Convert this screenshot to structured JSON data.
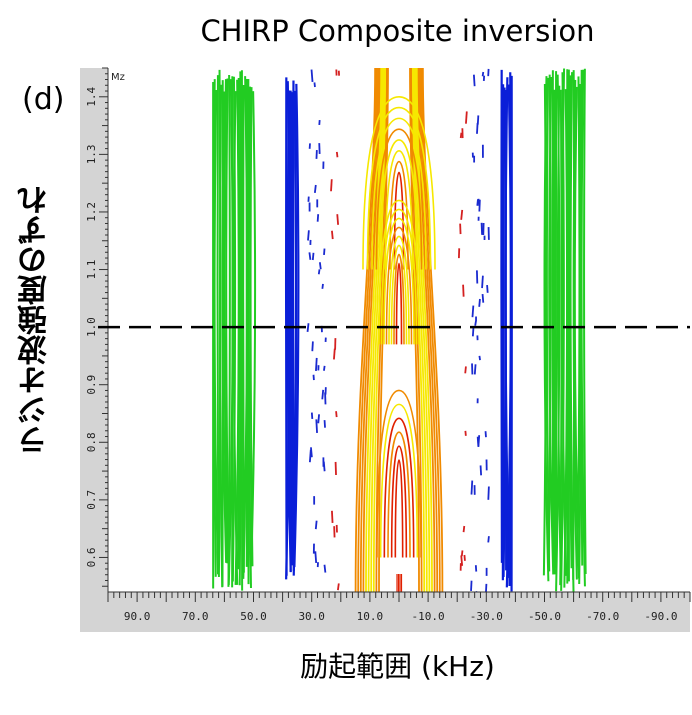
{
  "title": "CHIRP Composite inversion",
  "panel_label": "(d)",
  "chart_data": {
    "type": "heatmap",
    "subtype": "contour",
    "title": "CHIRP Composite inversion",
    "xlabel": "励起範囲 (kHz)",
    "ylabel": "ラジオ波強度のずれ",
    "x_reversed": true,
    "xlim": [
      100,
      -100
    ],
    "ylim": [
      0.54,
      1.45
    ],
    "x_ticks": [
      90,
      70,
      50,
      30,
      10,
      -10,
      -30,
      -50,
      -70,
      -90
    ],
    "x_tick_labels": [
      "90.0",
      "70.0",
      "50.0",
      "30.0",
      "10.0",
      "-10.0",
      "-30.0",
      "-50.0",
      "-70.0",
      "-90.0"
    ],
    "y_ticks": [
      0.6,
      0.7,
      0.8,
      0.9,
      1.0,
      1.1,
      1.2,
      1.3,
      1.4
    ],
    "y_tick_labels": [
      "0.6",
      "0.7",
      "0.8",
      "0.9",
      "1.0",
      "1.1",
      "1.2",
      "1.3",
      "1.4"
    ],
    "plot_label": "Mz",
    "reference_line": {
      "y": 1.0,
      "style": "dashed",
      "color": "#000000"
    },
    "colors": {
      "outer": "#22cc22",
      "edge": "#0a1fd8",
      "inner_dash_blue": "#1a2ad0",
      "inner_dash_red": "#d42020",
      "core_orange": "#f08a00",
      "core_yellow": "#f6e800",
      "core_red": "#e02000",
      "axis_gray": "#d4d4d4"
    }
  }
}
